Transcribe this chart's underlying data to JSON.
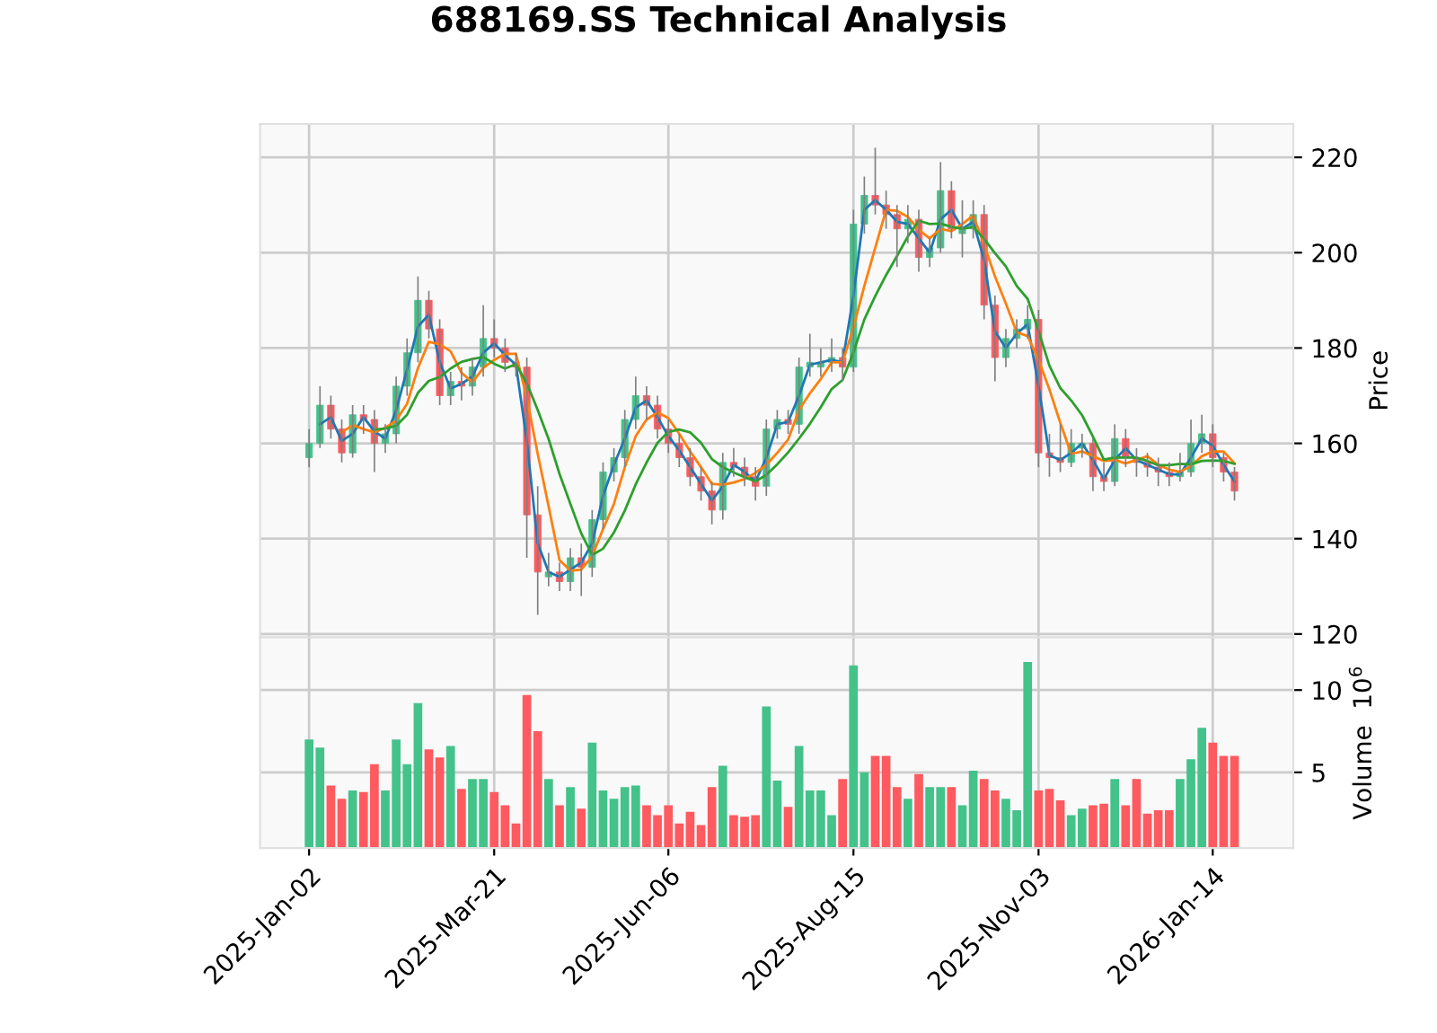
{
  "chart_data": [
    {
      "type": "candlestick",
      "title": "688169.SS Technical Analysis",
      "ylabel": "Price",
      "grid": true,
      "tick_labels": "y",
      "ylim": [
        119.3,
        227
      ],
      "yticks": [
        120,
        140,
        160,
        180,
        200,
        220
      ],
      "categories": [
        null,
        null,
        null,
        null,
        null,
        null,
        null,
        null,
        null,
        null,
        null,
        null,
        null,
        null,
        null,
        null,
        null,
        null,
        null,
        null,
        null,
        null,
        null,
        null,
        null,
        null,
        null,
        null,
        null,
        null,
        null,
        null,
        null,
        null,
        null,
        null,
        null,
        null,
        null,
        null,
        null,
        null,
        null,
        null,
        null,
        null,
        null,
        null,
        null,
        null,
        null,
        null,
        null,
        null,
        null,
        null,
        null,
        null,
        null,
        null,
        null,
        null,
        null,
        null,
        null,
        null,
        null,
        null,
        null,
        null,
        null,
        null,
        null,
        null,
        null,
        null,
        null,
        null,
        null,
        null,
        null,
        null,
        null,
        null,
        null,
        null
      ],
      "ohlc": [
        [
          157,
          163,
          155,
          160
        ],
        [
          160,
          172,
          159,
          168
        ],
        [
          168,
          170,
          161,
          163
        ],
        [
          163,
          165,
          156,
          158
        ],
        [
          158,
          168,
          157,
          166
        ],
        [
          166,
          168,
          162,
          165
        ],
        [
          165,
          167,
          154,
          160
        ],
        [
          160,
          164,
          158,
          162
        ],
        [
          162,
          174,
          160,
          172
        ],
        [
          172,
          182,
          170,
          179
        ],
        [
          179,
          195,
          177,
          190
        ],
        [
          190,
          192,
          182,
          184
        ],
        [
          184,
          186,
          168,
          170
        ],
        [
          170,
          175,
          168,
          173
        ],
        [
          173,
          176,
          169,
          172
        ],
        [
          172,
          178,
          170,
          176
        ],
        [
          176,
          189,
          174,
          182
        ],
        [
          182,
          186,
          178,
          180
        ],
        [
          180,
          182,
          175,
          177
        ],
        [
          177,
          179,
          174,
          176
        ],
        [
          176,
          178,
          136,
          145
        ],
        [
          145,
          151,
          124,
          133
        ],
        [
          132,
          137,
          130,
          133
        ],
        [
          133,
          135,
          129,
          131
        ],
        [
          131,
          138,
          129,
          136
        ],
        [
          136,
          139,
          128,
          134
        ],
        [
          134,
          146,
          132,
          144
        ],
        [
          144,
          156,
          142,
          154
        ],
        [
          154,
          159,
          152,
          157
        ],
        [
          157,
          167,
          155,
          165
        ],
        [
          165,
          174,
          163,
          170
        ],
        [
          170,
          172,
          165,
          168
        ],
        [
          168,
          170,
          161,
          163
        ],
        [
          163,
          165,
          158,
          160
        ],
        [
          160,
          162,
          155,
          157
        ],
        [
          157,
          159,
          151,
          153
        ],
        [
          153,
          155,
          148,
          150
        ],
        [
          150,
          152,
          143,
          146
        ],
        [
          146,
          158,
          144,
          156
        ],
        [
          156,
          159,
          153,
          155
        ],
        [
          155,
          157,
          151,
          153
        ],
        [
          153,
          155,
          148,
          151
        ],
        [
          151,
          165,
          149,
          163
        ],
        [
          163,
          167,
          161,
          165
        ],
        [
          165,
          167,
          162,
          164
        ],
        [
          164,
          178,
          162,
          176
        ],
        [
          176,
          183,
          174,
          177
        ],
        [
          176,
          180,
          174,
          177
        ],
        [
          177,
          182,
          175,
          178
        ],
        [
          178,
          180,
          173,
          176
        ],
        [
          176,
          209,
          175,
          206
        ],
        [
          206,
          216,
          204,
          212
        ],
        [
          212,
          222,
          208,
          210
        ],
        [
          210,
          213,
          205,
          208
        ],
        [
          208,
          210,
          197,
          205
        ],
        [
          205,
          210,
          202,
          207
        ],
        [
          207,
          209,
          196,
          199
        ],
        [
          199,
          203,
          197,
          201
        ],
        [
          201,
          219,
          200,
          213
        ],
        [
          213,
          215,
          203,
          205
        ],
        [
          204,
          211,
          199,
          205
        ],
        [
          205,
          211,
          203,
          208
        ],
        [
          208,
          210,
          186,
          189
        ],
        [
          189,
          191,
          173,
          178
        ],
        [
          178,
          184,
          176,
          182
        ],
        [
          182,
          186,
          180,
          184
        ],
        [
          184,
          189,
          182,
          186
        ],
        [
          186,
          188,
          155,
          158
        ],
        [
          158,
          162,
          153,
          157
        ],
        [
          157,
          164,
          154,
          156
        ],
        [
          156,
          163,
          155,
          160
        ],
        [
          159,
          162,
          157,
          160
        ],
        [
          160,
          161,
          150,
          153
        ],
        [
          153,
          156,
          150,
          152
        ],
        [
          152,
          164,
          151,
          161
        ],
        [
          161,
          163,
          155,
          157
        ],
        [
          157,
          159,
          153,
          156
        ],
        [
          156,
          158,
          153,
          155
        ],
        [
          155,
          157,
          151,
          154
        ],
        [
          154,
          156,
          151,
          153
        ],
        [
          153,
          158,
          152,
          154
        ],
        [
          154,
          165,
          153,
          160
        ],
        [
          160,
          166,
          158,
          162
        ],
        [
          162,
          164,
          155,
          157
        ],
        [
          157,
          158,
          152,
          154
        ],
        [
          154,
          155,
          148,
          150
        ]
      ],
      "colors": [
        "#43c28a",
        "#43c28a",
        "#ff5a5f",
        "#ff5a5f",
        "#43c28a",
        "#ff5a5f",
        "#ff5a5f",
        "#43c28a",
        "#43c28a",
        "#43c28a",
        "#43c28a",
        "#ff5a5f",
        "#ff5a5f",
        "#43c28a",
        "#ff5a5f",
        "#43c28a",
        "#43c28a",
        "#ff5a5f",
        "#ff5a5f",
        "#ff5a5f",
        "#ff5a5f",
        "#ff5a5f",
        "#43c28a",
        "#ff5a5f",
        "#43c28a",
        "#ff5a5f",
        "#43c28a",
        "#43c28a",
        "#43c28a",
        "#43c28a",
        "#43c28a",
        "#ff5a5f",
        "#ff5a5f",
        "#ff5a5f",
        "#ff5a5f",
        "#ff5a5f",
        "#ff5a5f",
        "#ff5a5f",
        "#43c28a",
        "#ff5a5f",
        "#ff5a5f",
        "#ff5a5f",
        "#43c28a",
        "#43c28a",
        "#ff5a5f",
        "#43c28a",
        "#43c28a",
        "#43c28a",
        "#43c28a",
        "#ff5a5f",
        "#43c28a",
        "#43c28a",
        "#ff5a5f",
        "#ff5a5f",
        "#ff5a5f",
        "#43c28a",
        "#ff5a5f",
        "#43c28a",
        "#43c28a",
        "#ff5a5f",
        "#43c28a",
        "#43c28a",
        "#ff5a5f",
        "#ff5a5f",
        "#43c28a",
        "#43c28a",
        "#43c28a",
        "#ff5a5f",
        "#ff5a5f",
        "#ff5a5f",
        "#43c28a",
        "#43c28a",
        "#ff5a5f",
        "#ff5a5f",
        "#43c28a",
        "#ff5a5f",
        "#ff5a5f",
        "#ff5a5f",
        "#ff5a5f",
        "#ff5a5f",
        "#43c28a",
        "#43c28a",
        "#43c28a",
        "#ff5a5f",
        "#ff5a5f",
        "#ff5a5f"
      ],
      "series": [
        {
          "type": "line",
          "color": "#1f77b4",
          "values": [
            null,
            164,
            165.5,
            160.5,
            162,
            165.5,
            162.5,
            161,
            167,
            175.5,
            184.5,
            187,
            177,
            171.5,
            172.5,
            174,
            179,
            181,
            178.5,
            176.5,
            160.5,
            139,
            133,
            132,
            133.5,
            135,
            139,
            149,
            155.5,
            161,
            167.5,
            169,
            165.5,
            161.5,
            158.5,
            155,
            151.5,
            148,
            151,
            155.5,
            154,
            152,
            157,
            164,
            164.5,
            170,
            176.5,
            177,
            177.5,
            177,
            191,
            209,
            211,
            209,
            206.5,
            206,
            203,
            200,
            207,
            209,
            205,
            206.5,
            198.5,
            183.5,
            180,
            183,
            185,
            172,
            157.5,
            156.5,
            158,
            160,
            156.5,
            152.5,
            156.5,
            159,
            156.5,
            155.5,
            154.5,
            153.5,
            153.5,
            157,
            161,
            159.5,
            155.5,
            152
          ]
        },
        {
          "type": "line",
          "color": "#ff7f0e",
          "values": [
            null,
            null,
            null,
            162.3,
            163.8,
            163,
            162.3,
            163.3,
            164.8,
            168.3,
            175.8,
            181.3,
            180.8,
            179.3,
            174.8,
            172.8,
            175.8,
            177.5,
            178.8,
            178.8,
            169.5,
            157.8,
            146.8,
            135.5,
            133.3,
            133.5,
            136.3,
            142,
            147.3,
            155,
            161.5,
            165,
            166.5,
            165.3,
            162,
            158.3,
            155,
            151.5,
            151.3,
            151.8,
            152.5,
            153.8,
            155.5,
            158,
            160.8,
            167,
            170.5,
            173.5,
            177,
            177,
            184.3,
            193,
            201,
            209,
            208.8,
            207.5,
            204.8,
            203,
            205,
            204.5,
            206,
            207.8,
            201.8,
            195,
            189.3,
            183.3,
            182.5,
            177.5,
            171.3,
            164.3,
            157.8,
            158.3,
            157.3,
            156.3,
            156.5,
            155.8,
            156.5,
            157.3,
            155.5,
            154.5,
            154,
            155.3,
            157.3,
            158.3,
            158.3,
            155.8
          ]
        },
        {
          "type": "line",
          "color": "#2ca02c",
          "values": [
            null,
            null,
            null,
            null,
            null,
            null,
            162.9,
            163.1,
            163.7,
            166,
            170.6,
            173.1,
            173.9,
            175.7,
            177.1,
            177.7,
            178.1,
            176.7,
            175.7,
            176.6,
            172.6,
            167,
            160.9,
            153.6,
            147.3,
            141.1,
            136.6,
            137.9,
            141.3,
            145.9,
            151.4,
            156,
            160.1,
            162.4,
            162.9,
            162.3,
            160.1,
            156.7,
            155,
            153.9,
            152.9,
            152,
            153.4,
            155.6,
            158.1,
            161,
            164.1,
            167.6,
            171.4,
            173.3,
            179.1,
            186,
            190.9,
            195.3,
            199.3,
            203.4,
            206.7,
            206,
            206.1,
            205.4,
            205,
            205.4,
            202.9,
            199.9,
            197.1,
            193,
            190.3,
            183.6,
            176.3,
            171.6,
            169,
            165.9,
            161.4,
            156.6,
            157,
            157,
            157,
            156.3,
            155.4,
            155.4,
            155.7,
            155.6,
            156.3,
            156.4,
            156.3,
            155.7
          ]
        }
      ]
    },
    {
      "type": "bar",
      "ylabel": "Volume  10$^{6}$",
      "grid": true,
      "ylim": [
        0.4,
        13.2
      ],
      "yticks": [
        5,
        10
      ],
      "categories": [
        "2025-Jan-02",
        null,
        null,
        null,
        null,
        null,
        null,
        null,
        null,
        null,
        null,
        null,
        null,
        null,
        null,
        null,
        null,
        "2025-Mar-21",
        null,
        null,
        null,
        null,
        null,
        null,
        null,
        null,
        null,
        null,
        null,
        null,
        null,
        null,
        null,
        "2025-Jun-06",
        null,
        null,
        null,
        null,
        null,
        null,
        null,
        null,
        null,
        null,
        null,
        null,
        null,
        null,
        null,
        null,
        "2025-Aug-15",
        null,
        null,
        null,
        null,
        null,
        null,
        null,
        null,
        null,
        null,
        null,
        null,
        null,
        null,
        null,
        null,
        "2025-Nov-03",
        null,
        null,
        null,
        null,
        null,
        null,
        null,
        null,
        null,
        null,
        null,
        null,
        null,
        null,
        null,
        "2026-Jan-14",
        null,
        null
      ],
      "values": [
        7.0,
        6.5,
        4.2,
        3.4,
        3.9,
        3.8,
        5.5,
        3.9,
        7.0,
        5.5,
        9.2,
        6.4,
        5.9,
        6.6,
        4.0,
        4.6,
        4.6,
        3.8,
        3.0,
        1.9,
        9.7,
        7.5,
        4.6,
        3.0,
        4.1,
        2.8,
        6.8,
        3.9,
        3.4,
        4.1,
        4.2,
        3.0,
        2.4,
        3.0,
        1.9,
        2.6,
        1.8,
        4.1,
        5.4,
        2.4,
        2.3,
        2.4,
        9.0,
        4.5,
        2.9,
        6.6,
        3.9,
        3.9,
        2.4,
        4.6,
        11.5,
        5.0,
        6.0,
        6.0,
        4.1,
        3.4,
        4.9,
        4.1,
        4.1,
        4.1,
        3.0,
        5.1,
        4.6,
        3.9,
        3.4,
        2.7,
        11.7,
        3.9,
        4.0,
        3.3,
        2.4,
        2.8,
        3.0,
        3.1,
        4.6,
        3.0,
        4.6,
        2.5,
        2.7,
        2.7,
        4.6,
        5.8,
        7.7,
        6.8,
        6.0,
        6.0
      ],
      "colors": [
        "#43c28a",
        "#43c28a",
        "#ff5a5f",
        "#ff5a5f",
        "#43c28a",
        "#ff5a5f",
        "#ff5a5f",
        "#43c28a",
        "#43c28a",
        "#43c28a",
        "#43c28a",
        "#ff5a5f",
        "#ff5a5f",
        "#43c28a",
        "#ff5a5f",
        "#43c28a",
        "#43c28a",
        "#ff5a5f",
        "#ff5a5f",
        "#ff5a5f",
        "#ff5a5f",
        "#ff5a5f",
        "#43c28a",
        "#ff5a5f",
        "#43c28a",
        "#ff5a5f",
        "#43c28a",
        "#43c28a",
        "#43c28a",
        "#43c28a",
        "#43c28a",
        "#ff5a5f",
        "#ff5a5f",
        "#ff5a5f",
        "#ff5a5f",
        "#ff5a5f",
        "#ff5a5f",
        "#ff5a5f",
        "#43c28a",
        "#ff5a5f",
        "#ff5a5f",
        "#ff5a5f",
        "#43c28a",
        "#43c28a",
        "#ff5a5f",
        "#43c28a",
        "#43c28a",
        "#43c28a",
        "#43c28a",
        "#ff5a5f",
        "#43c28a",
        "#43c28a",
        "#ff5a5f",
        "#ff5a5f",
        "#ff5a5f",
        "#43c28a",
        "#ff5a5f",
        "#43c28a",
        "#43c28a",
        "#ff5a5f",
        "#43c28a",
        "#43c28a",
        "#ff5a5f",
        "#ff5a5f",
        "#43c28a",
        "#43c28a",
        "#43c28a",
        "#ff5a5f",
        "#ff5a5f",
        "#ff5a5f",
        "#43c28a",
        "#43c28a",
        "#ff5a5f",
        "#ff5a5f",
        "#43c28a",
        "#ff5a5f",
        "#ff5a5f",
        "#ff5a5f",
        "#ff5a5f",
        "#ff5a5f",
        "#43c28a",
        "#43c28a",
        "#43c28a",
        "#ff5a5f",
        "#ff5a5f",
        "#ff5a5f"
      ]
    }
  ]
}
